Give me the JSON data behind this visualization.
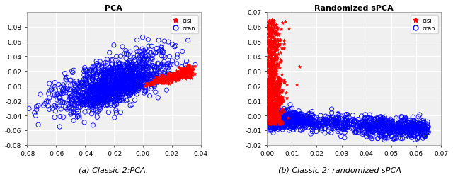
{
  "title_left": "PCA",
  "title_right": "Randomized sPCA",
  "caption_left": "(a) Classic-2:PCA.",
  "caption_right": "(b) Classic-2: randomized sPCA",
  "left": {
    "xlim": [
      -0.08,
      0.04
    ],
    "ylim": [
      -0.08,
      0.1
    ],
    "xticks": [
      -0.08,
      -0.06,
      -0.04,
      -0.02,
      0,
      0.02,
      0.04
    ],
    "yticks": [
      -0.08,
      -0.06,
      -0.04,
      -0.02,
      0,
      0.02,
      0.04,
      0.06,
      0.08
    ]
  },
  "right": {
    "xlim": [
      0,
      0.07
    ],
    "ylim": [
      -0.02,
      0.07
    ],
    "xticks": [
      0,
      0.01,
      0.02,
      0.03,
      0.04,
      0.05,
      0.06,
      0.07
    ],
    "yticks": [
      -0.02,
      -0.01,
      0,
      0.01,
      0.02,
      0.03,
      0.04,
      0.05,
      0.06,
      0.07
    ]
  },
  "red_color": "#FF0000",
  "blue_color": "#0000FF",
  "bg_color": "#F0F0F0",
  "grid_color": "#FFFFFF",
  "seed": 7
}
